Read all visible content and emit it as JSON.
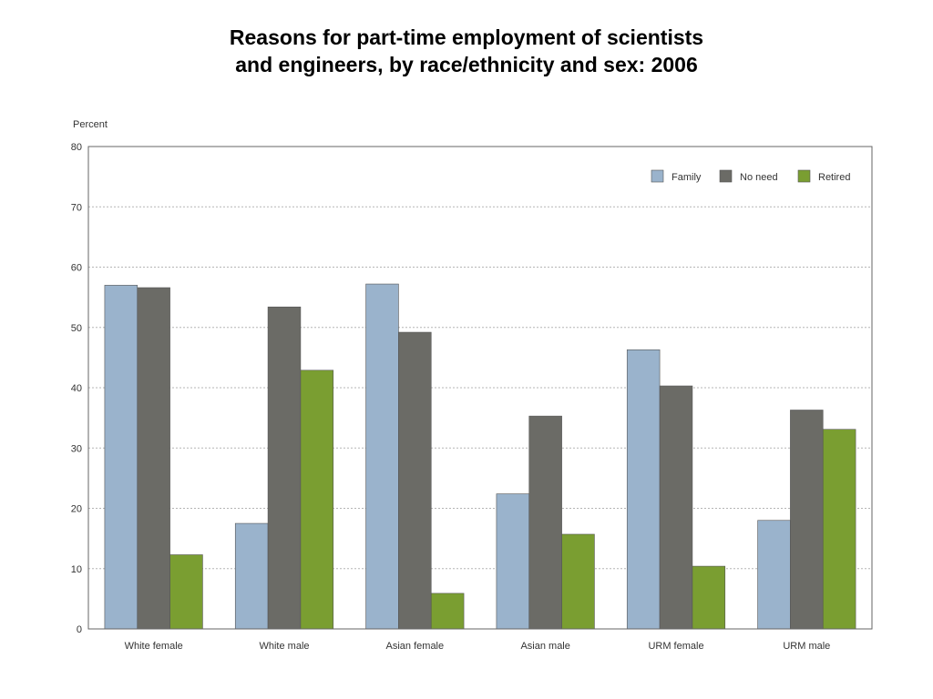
{
  "chart_data": {
    "type": "bar",
    "title_line1": "Reasons for part-time employment of scientists",
    "title_line2": "and engineers, by race/ethnicity and sex: 2006",
    "ylabel": "Percent",
    "xlabel": "",
    "ylim": [
      0,
      80
    ],
    "yticks": [
      "0",
      "10",
      "20",
      "30",
      "40",
      "50",
      "60",
      "70",
      "80"
    ],
    "grid": true,
    "legend_position": "top-right",
    "categories": [
      "White female",
      "White male",
      "Asian female",
      "Asian male",
      "URM female",
      "URM male"
    ],
    "series": [
      {
        "name": "Family",
        "color": "#9ab3cc",
        "values": [
          57,
          17.5,
          57.2,
          22.4,
          46.3,
          18
        ]
      },
      {
        "name": "No need",
        "color": "#6b6b66",
        "values": [
          56.6,
          53.4,
          49.2,
          35.3,
          40.3,
          36.3
        ]
      },
      {
        "name": "Retired",
        "color": "#7a9e31",
        "values": [
          12.3,
          42.9,
          5.9,
          15.7,
          10.4,
          33.1
        ]
      }
    ]
  }
}
